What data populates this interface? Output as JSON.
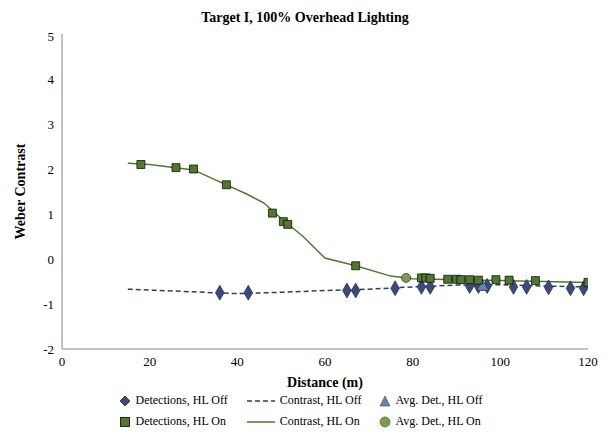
{
  "chart_data": {
    "type": "line",
    "title": "Target I, 100% Overhead Lighting",
    "x_label": "Distance (m)",
    "y_label": "Weber Contrast",
    "xlim": [
      0,
      120
    ],
    "xticks": [
      0,
      20,
      40,
      60,
      80,
      100,
      120
    ],
    "ylim": [
      -2,
      5
    ],
    "yticks": [
      -2,
      -1,
      0,
      1,
      2,
      3,
      4,
      5
    ],
    "grid": false,
    "legend": "bottom",
    "series": [
      {
        "name": "Detections, HL Off",
        "type": "scatter",
        "marker": "diamond",
        "color": "#3a4a80",
        "x": [
          36,
          42.5,
          65,
          67,
          76,
          82,
          84,
          93,
          95,
          97,
          103,
          106,
          111,
          116,
          119
        ],
        "values": [
          -0.75,
          -0.75,
          -0.7,
          -0.7,
          -0.65,
          -0.62,
          -0.62,
          -0.6,
          -0.6,
          -0.6,
          -0.62,
          -0.62,
          -0.63,
          -0.65,
          -0.65
        ]
      },
      {
        "name": "Contrast, HL Off",
        "type": "line",
        "line_style": "dashed",
        "color": "#2f3d6e",
        "x": [
          15,
          30,
          40,
          50,
          60,
          70,
          80,
          90,
          100,
          110,
          120
        ],
        "values": [
          -0.67,
          -0.73,
          -0.77,
          -0.74,
          -0.7,
          -0.67,
          -0.62,
          -0.58,
          -0.57,
          -0.6,
          -0.62
        ]
      },
      {
        "name": "Avg. Det., HL Off",
        "type": "scatter",
        "marker": "triangle",
        "color": "#6b7fb5",
        "x": [
          96
        ],
        "values": [
          -0.62
        ]
      },
      {
        "name": "Detections, HL On",
        "type": "scatter",
        "marker": "square",
        "color": "#4e7a2a",
        "x": [
          18,
          26,
          30,
          37.5,
          48,
          50.5,
          51.5,
          67,
          82,
          83,
          84,
          88,
          90,
          91,
          93,
          95,
          99,
          102,
          108,
          120
        ],
        "values": [
          2.1,
          2.03,
          2.0,
          1.65,
          1.02,
          0.83,
          0.77,
          -0.15,
          -0.42,
          -0.42,
          -0.43,
          -0.45,
          -0.45,
          -0.46,
          -0.46,
          -0.47,
          -0.46,
          -0.47,
          -0.48,
          -0.52
        ]
      },
      {
        "name": "Contrast, HL On",
        "type": "line",
        "line_style": "solid",
        "color": "#4e7a2a",
        "x": [
          15,
          20,
          30,
          37,
          42,
          46,
          50,
          55,
          60,
          67,
          75,
          80,
          90,
          100,
          110,
          120
        ],
        "values": [
          2.13,
          2.1,
          1.98,
          1.67,
          1.45,
          1.25,
          0.9,
          0.5,
          0.02,
          -0.15,
          -0.38,
          -0.44,
          -0.46,
          -0.48,
          -0.5,
          -0.52
        ]
      },
      {
        "name": "Avg. Det., HL On",
        "type": "scatter",
        "marker": "circle",
        "color": "#7d9c4a",
        "x": [
          78.5
        ],
        "values": [
          -0.42
        ]
      }
    ]
  }
}
